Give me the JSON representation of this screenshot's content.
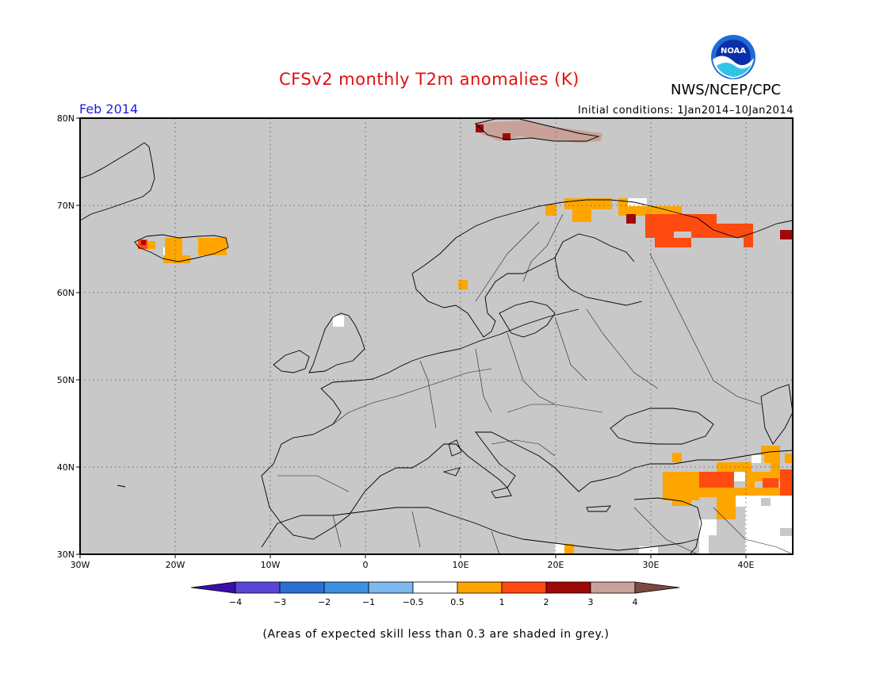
{
  "header": {
    "title": "CFSv2 monthly T2m anomalies (K)",
    "agency": "NWS/NCEP/CPC",
    "month": "Feb 2014",
    "initial_conditions": "Initial conditions: 1Jan2014–10Jan2014",
    "logo_text": "NOAA"
  },
  "map": {
    "lat_labels": [
      "80N",
      "70N",
      "60N",
      "50N",
      "40N",
      "30N"
    ],
    "lon_labels": [
      "30W",
      "20W",
      "10W",
      "0",
      "10E",
      "20E",
      "30E",
      "40E"
    ],
    "lat_range": [
      30,
      80
    ],
    "lon_range": [
      -30,
      45
    ],
    "grid": "dotted"
  },
  "colorbar": {
    "tick_labels": [
      "−4",
      "−3",
      "−2",
      "−1",
      "−0.5",
      "0.5",
      "1",
      "2",
      "3",
      "4"
    ],
    "colors": [
      "#3a0fa8",
      "#5a46d8",
      "#2c6fd2",
      "#3d8fe4",
      "#7db8ef",
      "#ffffff",
      "#ffa500",
      "#ff4a10",
      "#a00808",
      "#c8a298",
      "#7a4a40"
    ]
  },
  "legend_colors": {
    "grey_low_skill": "#c8c8c8",
    "anom_0_5_1": "#ffa500",
    "anom_1_2": "#ff4a10",
    "anom_2_3": "#a00808",
    "anom_3_4": "#c8a298",
    "neutral": "#ffffff"
  },
  "footnote": "(Areas of expected skill less than 0.3 are shaded in grey.)"
}
